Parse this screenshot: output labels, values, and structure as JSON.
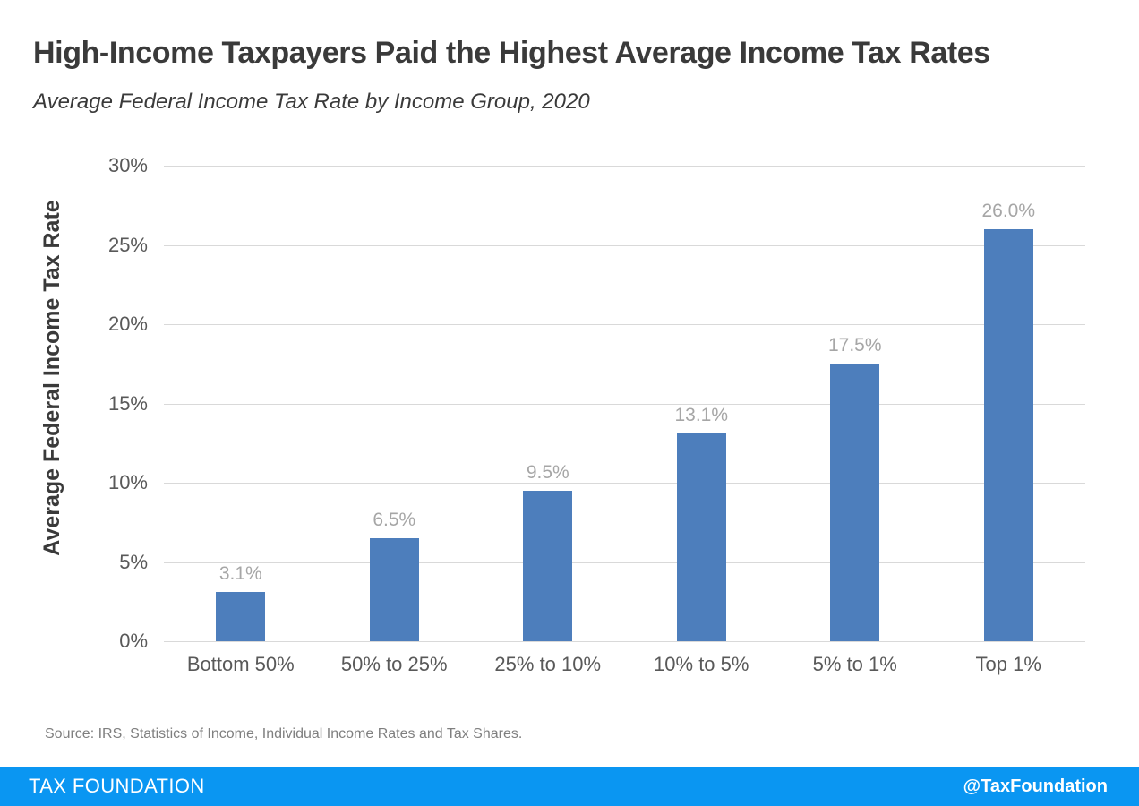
{
  "title": "High-Income Taxpayers Paid the Highest Average Income Tax Rates",
  "subtitle": "Average Federal Income Tax Rate by Income Group, 2020",
  "source": "Source: IRS, Statistics of Income, Individual Income Rates and Tax Shares.",
  "footer": {
    "brand": "TAX FOUNDATION",
    "handle": "@TaxFoundation",
    "background": "#0a96f2",
    "text_color": "#ffffff"
  },
  "chart_data": {
    "type": "bar",
    "title": "High-Income Taxpayers Paid the Highest Average Income Tax Rates",
    "subtitle": "Average Federal Income Tax Rate by Income Group, 2020",
    "categories": [
      "Bottom 50%",
      "50% to 25%",
      "25% to 10%",
      "10% to 5%",
      "5% to 1%",
      "Top 1%"
    ],
    "values": [
      3.1,
      6.5,
      9.5,
      13.1,
      17.5,
      26.0
    ],
    "value_labels": [
      "3.1%",
      "6.5%",
      "9.5%",
      "13.1%",
      "17.5%",
      "26.0%"
    ],
    "xlabel": "",
    "ylabel": "Average Federal Income Tax Rate",
    "ylim": [
      0,
      30
    ],
    "ytick_step": 5,
    "ytick_labels": [
      "0%",
      "5%",
      "10%",
      "15%",
      "20%",
      "25%",
      "30%"
    ],
    "grid": true,
    "legend": false,
    "bar_color": "#4d7ebc",
    "value_label_color": "#a6a6a6",
    "tick_label_color": "#595959",
    "gridline_color": "#d9d9d9"
  }
}
